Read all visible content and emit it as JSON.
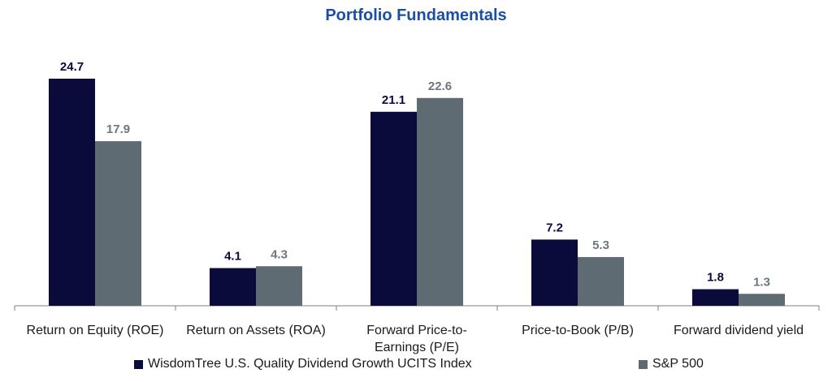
{
  "chart_data": {
    "type": "bar",
    "title": "Portfolio Fundamentals",
    "categories": [
      [
        "Return on Equity (ROE)"
      ],
      [
        "Return on Assets (ROA)"
      ],
      [
        "Forward Price-to-",
        "Earnings (P/E)"
      ],
      [
        "Price-to-Book (P/B)"
      ],
      [
        "Forward dividend yield"
      ]
    ],
    "series": [
      {
        "name": "WisdomTree U.S. Quality Dividend Growth UCITS Index",
        "color": "#0b0b3b",
        "values": [
          24.7,
          4.1,
          21.1,
          7.2,
          1.8
        ],
        "labels": [
          "24.7",
          "4.1",
          "21.1",
          "7.2",
          "1.8"
        ]
      },
      {
        "name": "S&P 500",
        "color": "#5f6b72",
        "values": [
          17.9,
          4.3,
          22.6,
          5.3,
          1.3
        ],
        "labels": [
          "17.9",
          "4.3",
          "22.6",
          "5.3",
          "1.3"
        ]
      }
    ],
    "ylim": [
      0,
      25
    ],
    "label_colors": [
      "#0b0b3b",
      "#6b767d"
    ],
    "axis_color": "#7f7f7f",
    "grid": false,
    "legend_position": "bottom"
  }
}
